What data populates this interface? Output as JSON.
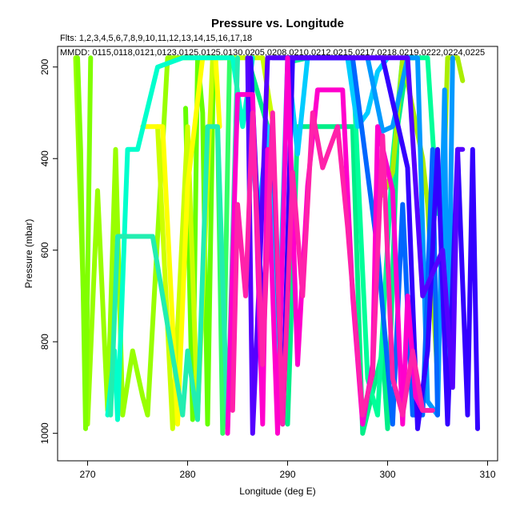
{
  "chart_data": {
    "type": "line",
    "title": "Pressure vs. Longitude",
    "subtitle_flights": "Flts: 1,2,3,4,5,6,7,8,9,10,11,12,13,14,15,16,17,18",
    "subtitle_dates": "MMDD: 0115,0118,0121,0123,0125,0125,0130,0205,0208,0210,0212,0215,0217,0218,0219,0222,0224,0225",
    "xlabel": "Longitude (deg E)",
    "ylabel": "Pressure (mbar)",
    "xlim": [
      267,
      311
    ],
    "ylim": [
      1060,
      155
    ],
    "y_inverted": true,
    "xticks": [
      270,
      280,
      290,
      300,
      310
    ],
    "yticks": [
      200,
      400,
      600,
      800,
      1000
    ],
    "grid": false,
    "legend": "none",
    "series": [
      {
        "color": "#99ff00",
        "points": [
          [
            268.8,
            180
          ],
          [
            270.0,
            980
          ],
          [
            271.0,
            470
          ],
          [
            272.0,
            950
          ],
          [
            272.8,
            380
          ],
          [
            273.5,
            960
          ],
          [
            274.5,
            820
          ],
          [
            275.5,
            920
          ],
          [
            276.0,
            960
          ],
          [
            278.0,
            180
          ],
          [
            279.5,
            180
          ],
          [
            281.5,
            180
          ],
          [
            282.5,
            180
          ]
        ]
      },
      {
        "color": "#80ff00",
        "points": [
          [
            269.0,
            180
          ],
          [
            269.3,
            380
          ],
          [
            269.8,
            990
          ],
          [
            270.3,
            180
          ]
        ]
      },
      {
        "color": "#66ff00",
        "points": [
          [
            279.8,
            290
          ],
          [
            280.5,
            970
          ],
          [
            281.0,
            180
          ],
          [
            281.5,
            300
          ],
          [
            282.0,
            980
          ],
          [
            282.6,
            180
          ],
          [
            283.5,
            180
          ]
        ]
      },
      {
        "color": "#33ff66",
        "points": [
          [
            283.0,
            330
          ],
          [
            283.5,
            1000
          ],
          [
            284.2,
            180
          ],
          [
            285.0,
            180
          ]
        ]
      },
      {
        "color": "#ccff00",
        "points": [
          [
            277.0,
            330
          ],
          [
            278.5,
            990
          ],
          [
            280.0,
            330
          ],
          [
            281.0,
            960
          ],
          [
            282.5,
            180
          ],
          [
            284.0,
            180
          ],
          [
            287.5,
            180
          ],
          [
            288.5,
            320
          ]
        ]
      },
      {
        "color": "#ffff00",
        "points": [
          [
            275.5,
            330
          ],
          [
            277.5,
            330
          ],
          [
            279.0,
            980
          ],
          [
            280.0,
            460
          ],
          [
            281.5,
            180
          ],
          [
            282.8,
            180
          ],
          [
            283.2,
            330
          ]
        ]
      },
      {
        "color": "#00ffcc",
        "points": [
          [
            272.0,
            960
          ],
          [
            272.7,
            820
          ],
          [
            273.0,
            970
          ],
          [
            274.0,
            380
          ],
          [
            275.0,
            380
          ],
          [
            277.0,
            200
          ],
          [
            279.5,
            180
          ],
          [
            283.0,
            180
          ],
          [
            284.5,
            180
          ],
          [
            285.5,
            330
          ],
          [
            286.5,
            180
          ]
        ]
      },
      {
        "color": "#22eeb0",
        "points": [
          [
            272.3,
            960
          ],
          [
            273.0,
            570
          ],
          [
            276.5,
            570
          ],
          [
            279.5,
            960
          ],
          [
            280.0,
            820
          ],
          [
            281.0,
            970
          ],
          [
            282.0,
            330
          ],
          [
            283.0,
            330
          ],
          [
            284.0,
            990
          ],
          [
            285.0,
            180
          ]
        ]
      },
      {
        "color": "#00ee88",
        "points": [
          [
            286.0,
            180
          ],
          [
            288.0,
            330
          ],
          [
            289.0,
            820
          ],
          [
            290.0,
            980
          ],
          [
            291.0,
            330
          ],
          [
            296.5,
            330
          ],
          [
            297.5,
            1000
          ],
          [
            299.5,
            820
          ],
          [
            300.0,
            990
          ],
          [
            301.0,
            330
          ],
          [
            302.0,
            180
          ],
          [
            303.0,
            180
          ]
        ]
      },
      {
        "color": "#00ff99",
        "points": [
          [
            290.0,
            190
          ],
          [
            292.0,
            180
          ],
          [
            296.5,
            180
          ],
          [
            298.0,
            880
          ],
          [
            299.0,
            960
          ],
          [
            300.5,
            400
          ],
          [
            301.5,
            180
          ],
          [
            304.0,
            180
          ],
          [
            305.0,
            520
          ]
        ]
      },
      {
        "color": "#aaee00",
        "points": [
          [
            299.5,
            480
          ],
          [
            300.5,
            430
          ],
          [
            301.5,
            180
          ],
          [
            303.5,
            400
          ],
          [
            304.0,
            500
          ],
          [
            305.0,
            880
          ],
          [
            306.0,
            180
          ],
          [
            307.0,
            180
          ],
          [
            307.5,
            230
          ]
        ]
      },
      {
        "color": "#00ccff",
        "points": [
          [
            286.0,
            180
          ],
          [
            287.0,
            550
          ],
          [
            288.0,
            330
          ],
          [
            289.0,
            880
          ],
          [
            290.0,
            180
          ],
          [
            291.0,
            390
          ],
          [
            292.0,
            180
          ],
          [
            294.0,
            180
          ],
          [
            296.0,
            180
          ],
          [
            297.0,
            330
          ],
          [
            298.0,
            300
          ],
          [
            299.0,
            210
          ],
          [
            300.0,
            180
          ]
        ]
      },
      {
        "color": "#0099ff",
        "points": [
          [
            298.0,
            180
          ],
          [
            299.5,
            340
          ],
          [
            300.5,
            330
          ],
          [
            302.0,
            180
          ],
          [
            303.0,
            180
          ],
          [
            304.0,
            930
          ],
          [
            305.0,
            960
          ],
          [
            305.7,
            250
          ],
          [
            306.0,
            960
          ],
          [
            306.5,
            180
          ]
        ]
      },
      {
        "color": "#0066ff",
        "points": [
          [
            288.5,
            180
          ],
          [
            294.0,
            180
          ],
          [
            296.5,
            180
          ],
          [
            299.0,
            600
          ],
          [
            300.5,
            980
          ],
          [
            301.5,
            500
          ],
          [
            302.5,
            960
          ],
          [
            303.5,
            960
          ],
          [
            304.5,
            380
          ],
          [
            305.0,
            960
          ]
        ]
      },
      {
        "color": "#3300ff",
        "points": [
          [
            286.3,
            180
          ],
          [
            287.5,
            760
          ],
          [
            288.5,
            330
          ],
          [
            289.5,
            980
          ],
          [
            290.5,
            180
          ],
          [
            296.0,
            180
          ],
          [
            299.5,
            180
          ],
          [
            302.0,
            420
          ],
          [
            303.0,
            990
          ],
          [
            304.0,
            820
          ],
          [
            305.0,
            380
          ],
          [
            306.0,
            980
          ],
          [
            307.0,
            380
          ],
          [
            308.0,
            960
          ],
          [
            308.5,
            380
          ],
          [
            309.0,
            990
          ]
        ]
      },
      {
        "color": "#5500ff",
        "points": [
          [
            286.0,
            180
          ],
          [
            286.5,
            1000
          ],
          [
            287.2,
            650
          ],
          [
            288.0,
            180
          ],
          [
            290.0,
            180
          ],
          [
            292.0,
            180
          ],
          [
            300.0,
            180
          ],
          [
            302.0,
            180
          ],
          [
            303.5,
            700
          ],
          [
            305.5,
            600
          ],
          [
            306.5,
            900
          ],
          [
            307.0,
            380
          ],
          [
            307.5,
            380
          ]
        ]
      },
      {
        "color": "#ff00cc",
        "points": [
          [
            284.0,
            1000
          ],
          [
            285.0,
            260
          ],
          [
            286.5,
            260
          ],
          [
            287.5,
            980
          ],
          [
            288.0,
            380
          ],
          [
            289.0,
            1000
          ],
          [
            290.0,
            180
          ],
          [
            291.0,
            850
          ],
          [
            292.0,
            460
          ],
          [
            293.0,
            250
          ],
          [
            295.5,
            250
          ],
          [
            296.5,
            700
          ],
          [
            297.5,
            980
          ],
          [
            298.5,
            850
          ],
          [
            299.0,
            330
          ],
          [
            300.5,
            470
          ],
          [
            301.5,
            980
          ],
          [
            302.0,
            700
          ],
          [
            302.8,
            920
          ],
          [
            303.5,
            950
          ]
        ]
      },
      {
        "color": "#ff22aa",
        "points": [
          [
            284.5,
            950
          ],
          [
            285.0,
            500
          ],
          [
            285.8,
            700
          ],
          [
            286.5,
            300
          ],
          [
            287.5,
            850
          ],
          [
            288.5,
            300
          ],
          [
            289.5,
            980
          ],
          [
            290.5,
            430
          ],
          [
            291.5,
            700
          ],
          [
            292.5,
            300
          ],
          [
            293.5,
            420
          ],
          [
            295.0,
            330
          ],
          [
            296.0,
            550
          ],
          [
            297.5,
            960
          ],
          [
            298.5,
            870
          ],
          [
            299.5,
            350
          ],
          [
            300.5,
            880
          ],
          [
            301.5,
            960
          ],
          [
            302.5,
            820
          ],
          [
            303.5,
            950
          ],
          [
            304.5,
            950
          ]
        ]
      }
    ]
  }
}
